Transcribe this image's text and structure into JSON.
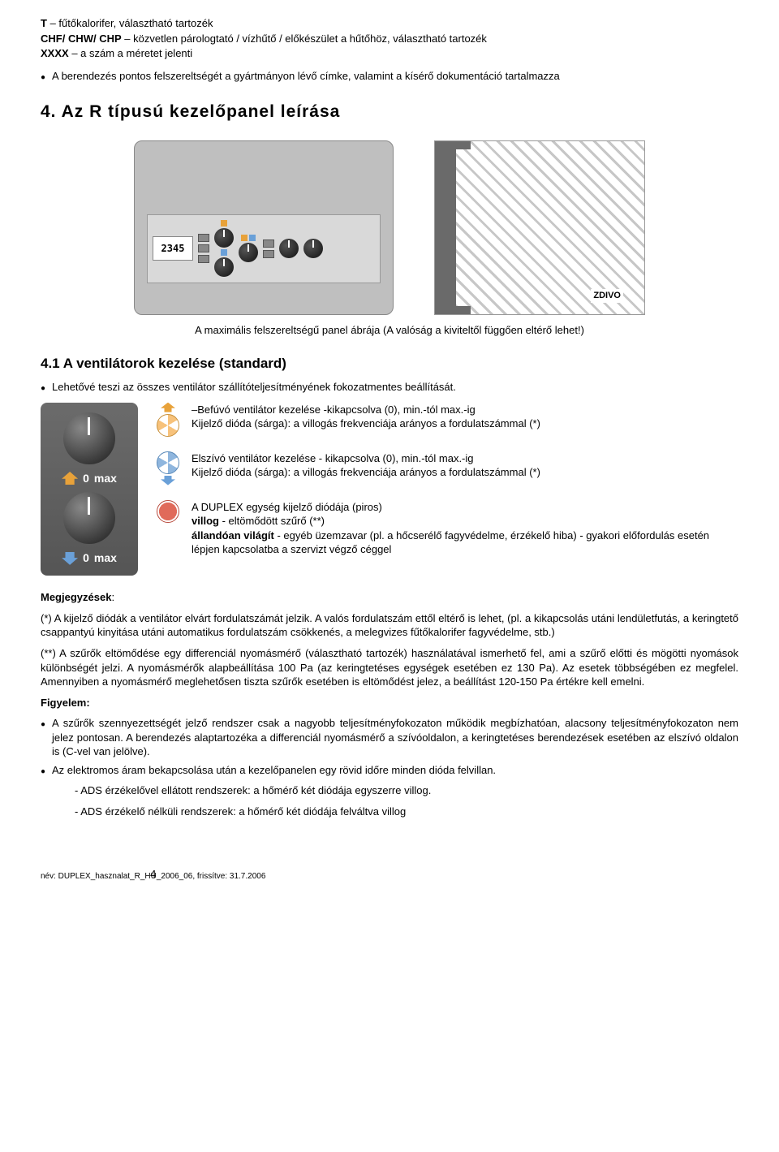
{
  "definitions": [
    {
      "term": "T",
      "desc": "– fűtőkalorifer, választható tartozék"
    },
    {
      "term": "CHF/ CHW/ CHP",
      "desc": "– közvetlen párologtató / vízhűtő / előkészület a hűtőhöz, választható tartozék"
    },
    {
      "term": "XXXX",
      "desc": "– a szám a méretet jelenti"
    }
  ],
  "equip_bullet": "A berendezés pontos felszereltségét a gyártmányon lévő címke, valamint a kísérő dokumentáció tartalmazza",
  "section4_title": "4.    Az R típusú kezelőpanel leírása",
  "panel_lcd": "2345",
  "wall_label": "ZDIVO",
  "fig_caption": "A maximális felszereltségű panel ábrája (A valóság a kiviteltől függően eltérő lehet!)",
  "section41_title": "4.1 A ventilátorok kezelése (standard)",
  "section41_bullet": "Lehetővé teszi az összes ventilátor szállítóteljesítményének fokozatmentes beállítását.",
  "knob_zero": "0",
  "knob_max": "max",
  "fan_rows": [
    {
      "line1": "–Befúvó ventilátor kezelése -kikapcsolva (0), min.-tól max.-ig",
      "line2": "Kijelző dióda (sárga):  a villogás frekvenciája arányos a fordulatszámmal (*)"
    },
    {
      "line1": " Elszívó ventilátor kezelése - kikapcsolva (0), min.-tól max.-ig",
      "line2": "Kijelző dióda (sárga):  a villogás frekvenciája arányos a fordulatszámmal (*)"
    }
  ],
  "fan_status": {
    "line1": "A DUPLEX egység kijelző diódája (piros)",
    "line2a": "villog",
    "line2b": " - eltömődött szűrő (**)",
    "line3a": "állandóan világít",
    "line3b": " - egyéb üzemzavar (pl. a hőcserélő fagyvédelme, érzékelő hiba) - gyakori előfordulás esetén lépjen kapcsolatba a szervizt végző céggel"
  },
  "notes_title": "Megjegyzések",
  "note1": "(*) A kijelző diódák a ventilátor elvárt fordulatszámát jelzik. A valós fordulatszám ettől eltérő is lehet, (pl. a kikapcsolás utáni lendületfutás, a keringtető csappantyú kinyitása utáni automatikus fordulatszám csökkenés, a melegvizes fűtőkalorifer fagyvédelme, stb.)",
  "note2": "(**) A szűrők eltömődése egy differenciál nyomásmérő (választható tartozék) használatával ismerhető fel, ami a szűrő előtti és mögötti nyomások különbségét jelzi. A nyomásmérők alapbeállítása 100 Pa (az keringtetéses egységek esetében ez 130 Pa). Az esetek többségében ez megfelel. Amennyiben a nyomásmérő meglehetősen tiszta szűrők esetében is eltömődést jelez, a beállítást 120-150 Pa értékre kell emelni.",
  "warn_title": "Figyelem:",
  "warn_bullets": [
    "A szűrők szennyezettségét jelző rendszer csak a nagyobb teljesítményfokozaton működik megbízhatóan, alacsony teljesítményfokozaton nem jelez pontosan. A berendezés alaptartozéka a differenciál nyomásmérő a szívóoldalon, a keringtetéses berendezések esetében az elszívó oldalon is (C-vel van jelölve).",
    "Az elektromos áram bekapcsolása után a kezelőpanelen egy rövid időre minden dióda felvillan."
  ],
  "warn_sub": [
    "- ADS érzékelővel ellátott rendszerek: a hőmérő két diódája egyszerre villog.",
    "- ADS érzékelő nélküli rendszerek: a hőmérő két diódája felváltva villog"
  ],
  "footer_left": "név: DUPLEX_hasznalat_R_HU_2006_06, frissítve: 31.7.2006",
  "footer_page": "4"
}
